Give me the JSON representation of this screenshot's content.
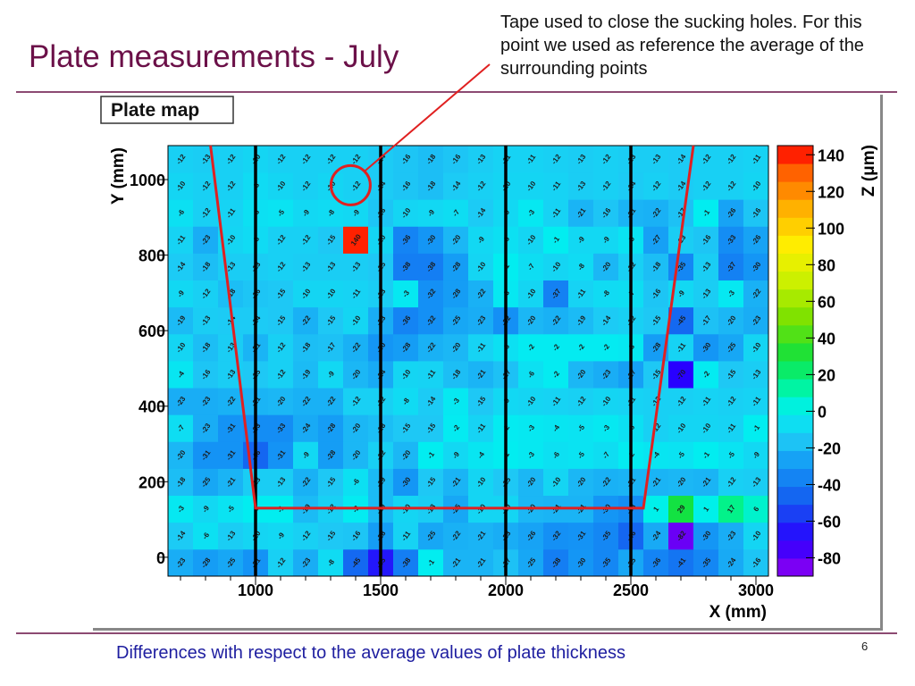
{
  "slide": {
    "title": "Plate measurements - July",
    "annotation": "Tape used to close the sucking holes. For this point we used as reference the average of the surrounding points",
    "footer": "Differences with respect to the average values of plate thickness",
    "page_number": "6"
  },
  "colors": {
    "title": "#6b1048",
    "footer": "#1e1ea0",
    "rule": "#8c4a72",
    "overlay_line": "#e02020"
  },
  "chart_data": {
    "type": "heatmap",
    "title": "Plate map",
    "xlabel": "X (mm)",
    "ylabel": "Y (mm)",
    "zlabel": "Z (μm)",
    "xlim": [
      650,
      3050
    ],
    "ylim": [
      -50,
      1090
    ],
    "zlim": [
      -90,
      145
    ],
    "x_ticks": [
      1000,
      1500,
      2000,
      2500,
      3000
    ],
    "y_ticks": [
      0,
      200,
      400,
      600,
      800,
      1000
    ],
    "z_ticks": [
      140,
      120,
      100,
      80,
      60,
      40,
      20,
      0,
      -20,
      -40,
      -60,
      -80
    ],
    "cols": 24,
    "rows": 16,
    "cell_values": [
      [
        -23,
        -28,
        -25,
        -31,
        -12,
        -23,
        -8,
        -45,
        -65,
        -38,
        -1,
        -21,
        -21,
        -17,
        -25,
        -38,
        -30,
        -35,
        -25,
        -36,
        -41,
        -35,
        -24,
        -16
      ],
      [
        -14,
        -6,
        -13,
        -10,
        -9,
        -12,
        -15,
        -16,
        -28,
        -11,
        -25,
        -22,
        -21,
        -23,
        -26,
        -32,
        -31,
        -35,
        -46,
        -24,
        -82,
        -30,
        -23,
        -10
      ],
      [
        -3,
        -9,
        -5,
        -1,
        -1,
        -19,
        -12,
        -2,
        -19,
        -10,
        -13,
        -25,
        -10,
        -10,
        -20,
        -21,
        -21,
        -30,
        -33,
        1,
        29,
        1,
        17,
        6
      ],
      [
        -18,
        -25,
        -21,
        -13,
        -13,
        -22,
        -15,
        -6,
        -19,
        -30,
        -15,
        -21,
        -10,
        -15,
        -20,
        -10,
        -20,
        -22,
        -21,
        -21,
        -20,
        -21,
        -12,
        -13
      ],
      [
        -20,
        -31,
        -31,
        -46,
        -31,
        -9,
        -28,
        -20,
        -12,
        -20,
        -1,
        -9,
        -4,
        -1,
        -3,
        -6,
        -5,
        -7,
        -2,
        -4,
        -5,
        -1,
        -5,
        -9
      ],
      [
        -7,
        -23,
        -31,
        -33,
        -33,
        -24,
        -28,
        -20,
        -18,
        -15,
        -15,
        -2,
        -11,
        -2,
        -3,
        -4,
        -5,
        -3,
        -6,
        -12,
        -10,
        -10,
        -11,
        -1
      ],
      [
        -23,
        -23,
        -22,
        -21,
        -20,
        -22,
        -22,
        -12,
        -12,
        -8,
        -14,
        -3,
        -15,
        -9,
        -10,
        -11,
        -12,
        -10,
        -11,
        -12,
        -12,
        -11,
        -12,
        -11
      ],
      [
        -4,
        -16,
        -13,
        -15,
        -12,
        -19,
        -9,
        -20,
        -24,
        -10,
        -11,
        -18,
        -21,
        -17,
        -6,
        -2,
        -20,
        -23,
        -27,
        -15,
        -70,
        -2,
        -15,
        -13
      ],
      [
        -10,
        -18,
        -13,
        -21,
        -12,
        -18,
        -17,
        -22,
        -30,
        -28,
        -22,
        -20,
        -11,
        -6,
        -2,
        -2,
        -2,
        -2,
        -3,
        -28,
        -11,
        -30,
        -25,
        -10
      ],
      [
        -19,
        -13,
        -14,
        -14,
        -15,
        -22,
        -15,
        -10,
        -23,
        -36,
        -32,
        -25,
        -23,
        -32,
        -20,
        -22,
        -19,
        -14,
        -12,
        -15,
        -45,
        -17,
        -20,
        -23
      ],
      [
        -9,
        -12,
        -18,
        -16,
        -15,
        -10,
        -10,
        -11,
        -13,
        -3,
        -32,
        -28,
        -22,
        -3,
        -10,
        -37,
        -11,
        -8,
        -7,
        -16,
        -9,
        -13,
        -3,
        -22
      ],
      [
        -14,
        -18,
        -13,
        -13,
        -12,
        -13,
        -13,
        -13,
        -15,
        -38,
        -38,
        -28,
        -10,
        -1,
        -7,
        -10,
        -8,
        -20,
        -12,
        -18,
        -35,
        -13,
        -37,
        -30
      ],
      [
        -11,
        -23,
        -10,
        -8,
        -12,
        -12,
        -15,
        140,
        -10,
        -36,
        -30,
        -20,
        -9,
        -6,
        -10,
        -1,
        -9,
        -9,
        -5,
        -27,
        -13,
        -16,
        -33,
        -26
      ],
      [
        -6,
        -12,
        -11,
        -6,
        -5,
        -9,
        -8,
        -9,
        -16,
        -10,
        -9,
        -7,
        -14,
        -9,
        -3,
        -11,
        -21,
        -16,
        -21,
        -22,
        -17,
        -1,
        -26,
        -16
      ],
      [
        -10,
        -12,
        -12,
        -8,
        -10,
        -12,
        -10,
        -12,
        -14,
        -16,
        -18,
        -14,
        -12,
        -10,
        -10,
        -11,
        -13,
        -12,
        -14,
        -12,
        -14,
        -12,
        -12,
        -10
      ],
      [
        -12,
        -13,
        -12,
        -10,
        -12,
        -12,
        -12,
        -12,
        -14,
        -16,
        -18,
        -16,
        -13,
        -11,
        -11,
        -12,
        -13,
        -12,
        -13,
        -13,
        -14,
        -12,
        -12,
        -11
      ]
    ],
    "vertical_lines_x": [
      1000,
      1500,
      2000,
      2500
    ],
    "overlay_polyline": [
      [
        820,
        1090
      ],
      [
        1000,
        130
      ],
      [
        2550,
        130
      ],
      [
        2750,
        1090
      ]
    ],
    "highlight_circle": {
      "x": 1380,
      "y": 985
    },
    "annotation_arrow_to": {
      "x": 1380,
      "y": 985
    }
  }
}
